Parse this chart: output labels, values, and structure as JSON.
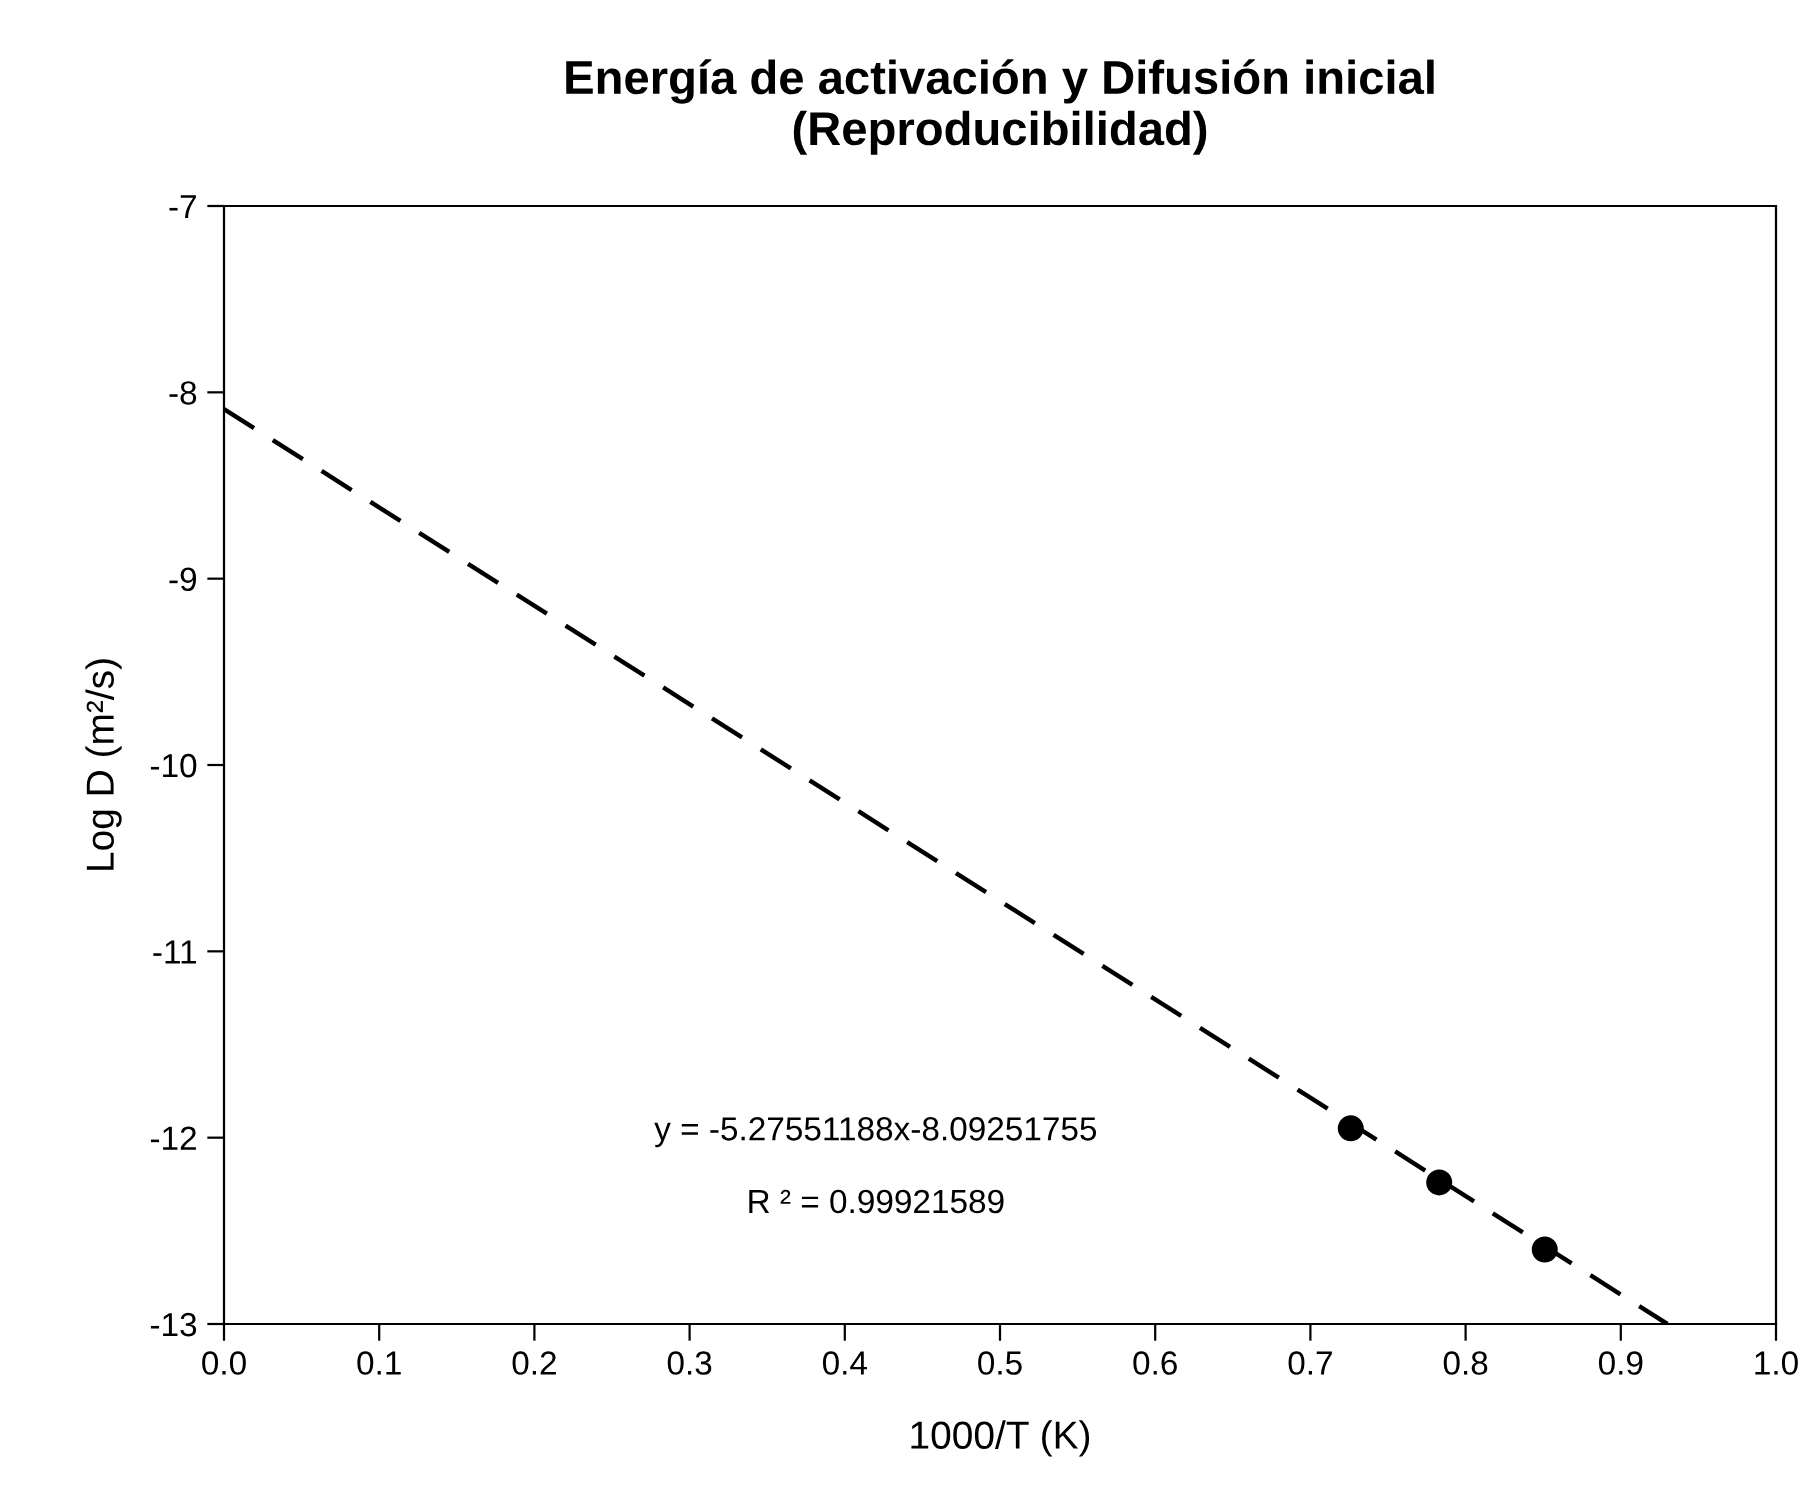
{
  "chart_data": {
    "type": "scatter",
    "title": "Energía de activación y Difusión inicial\n(Reproducibilidad)",
    "xlabel": "1000/T (K)",
    "ylabel": "Log D (m²/s)",
    "series": [
      {
        "color": "#000000",
        "marker": "circle",
        "x": [
          0.726,
          0.783,
          0.851
        ],
        "values": [
          -11.95,
          -12.24,
          -12.6
        ]
      },
      {
        "type": "line",
        "color": "#000000",
        "line_style": "dashed",
        "marker": "none",
        "x": [
          0,
          0.93
        ],
        "values": [
          -8.09,
          -13
        ]
      }
    ],
    "annotations": [
      "y = -5.27551188x-8.09251755",
      "R ² = 0.99921589"
    ],
    "xlim": [
      0,
      1
    ],
    "ylim": [
      -13,
      -7
    ],
    "xticks": [
      {
        "value": 0,
        "label": "0.0"
      },
      0.1,
      0.2,
      0.3,
      0.4,
      0.5,
      0.6,
      0.7,
      0.8,
      0.9,
      {
        "value": 1,
        "label": "1.0"
      }
    ],
    "yticks": [
      -13,
      -12,
      -11,
      -10,
      -9,
      -8,
      -7
    ],
    "grid": false,
    "legend": false
  }
}
